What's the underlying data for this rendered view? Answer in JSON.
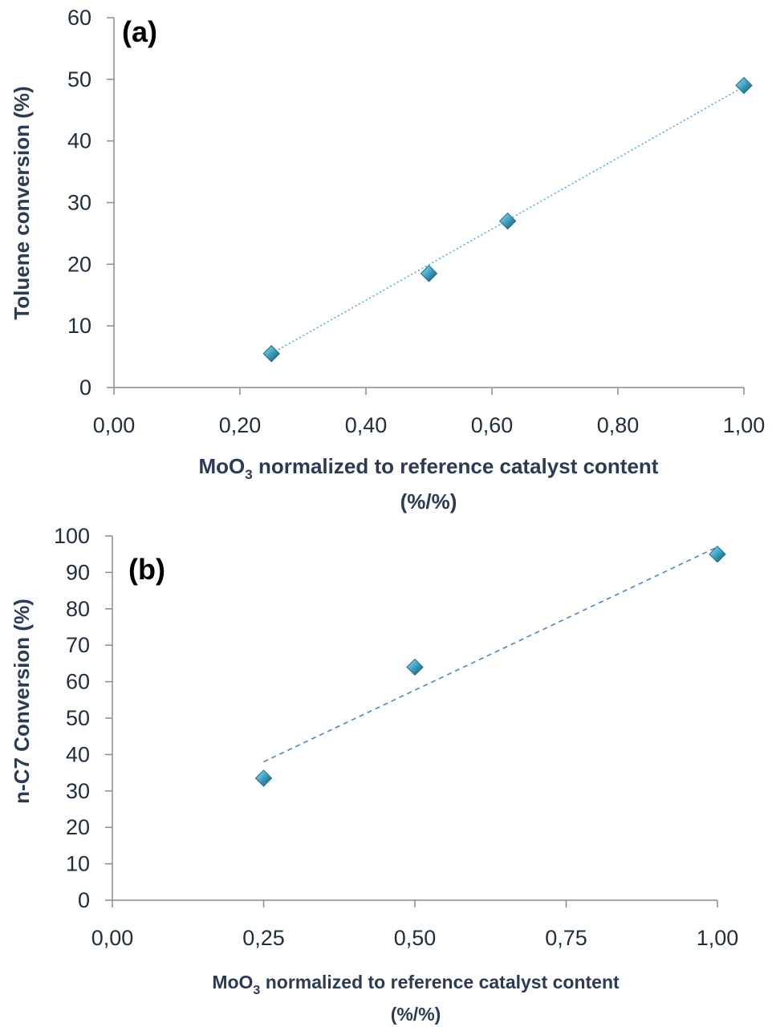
{
  "colors": {
    "marker_light": "#7fd0e4",
    "marker_dark": "#1b6d8a",
    "trend_a": "#5aa9d6",
    "trend_b": "#4a86c8",
    "axis": "#8c8c8c",
    "text": "#2b3a55"
  },
  "chart_data": [
    {
      "type": "scatter",
      "panel_label": "(a)",
      "ylabel": "Toluene conversion (%)",
      "xlabel_main": "MoO",
      "xlabel_sub": "3",
      "xlabel_rest": " normalized to reference catalyst content",
      "xlabel_line2": "(%/%)",
      "xlim": [
        0,
        1
      ],
      "ylim": [
        0,
        60
      ],
      "xticks": [
        "0,00",
        "0,20",
        "0,40",
        "0,60",
        "0,80",
        "1,00"
      ],
      "yticks": [
        "0",
        "10",
        "20",
        "30",
        "40",
        "50",
        "60"
      ],
      "x": [
        0.25,
        0.5,
        0.625,
        1.0
      ],
      "y": [
        5.5,
        18.5,
        27.0,
        49.0
      ],
      "trendline": {
        "style": "dotted",
        "x": [
          0.25,
          1.0
        ],
        "y": [
          5.5,
          48.8
        ]
      }
    },
    {
      "type": "scatter",
      "panel_label": "(b)",
      "ylabel": "n-C7 Conversion (%)",
      "xlabel_main": "MoO",
      "xlabel_sub": "3",
      "xlabel_rest": " normalized to reference catalyst content",
      "xlabel_line2": "(%/%)",
      "xlim": [
        0,
        1
      ],
      "ylim": [
        0,
        100
      ],
      "xticks": [
        "0,00",
        "0,25",
        "0,50",
        "0,75",
        "1,00"
      ],
      "yticks": [
        "0",
        "10",
        "20",
        "30",
        "40",
        "50",
        "60",
        "70",
        "80",
        "90",
        "100"
      ],
      "x": [
        0.25,
        0.5,
        1.0
      ],
      "y": [
        33.5,
        64.0,
        95.0
      ],
      "trendline": {
        "style": "dashed",
        "x": [
          0.25,
          1.0
        ],
        "y": [
          38.0,
          97.0
        ]
      }
    }
  ]
}
